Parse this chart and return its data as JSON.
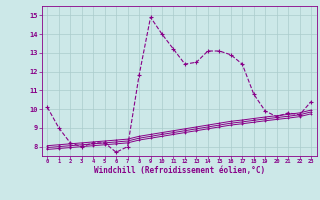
{
  "xlabel": "Windchill (Refroidissement éolien,°C)",
  "bg_color": "#cce8e8",
  "grid_color": "#aacccc",
  "line_color": "#880088",
  "x_ticks": [
    0,
    1,
    2,
    3,
    4,
    5,
    6,
    7,
    8,
    9,
    10,
    11,
    12,
    13,
    14,
    15,
    16,
    17,
    18,
    19,
    20,
    21,
    22,
    23
  ],
  "y_ticks": [
    8,
    9,
    10,
    11,
    12,
    13,
    14,
    15
  ],
  "ylim": [
    7.5,
    15.5
  ],
  "xlim": [
    -0.5,
    23.5
  ],
  "series1_x": [
    0,
    1,
    2,
    3,
    4,
    5,
    6,
    7,
    8,
    9,
    10,
    11,
    12,
    13,
    14,
    15,
    16,
    17,
    18,
    19,
    20,
    21,
    22,
    23
  ],
  "series1_y": [
    10.1,
    9.0,
    8.2,
    8.0,
    8.2,
    8.2,
    7.7,
    8.0,
    11.8,
    14.9,
    14.0,
    13.2,
    12.4,
    12.5,
    13.1,
    13.1,
    12.9,
    12.4,
    10.8,
    9.9,
    9.6,
    9.8,
    9.7,
    10.4
  ],
  "series2_y": [
    8.05,
    8.1,
    8.15,
    8.2,
    8.25,
    8.3,
    8.35,
    8.4,
    8.55,
    8.65,
    8.75,
    8.85,
    8.95,
    9.05,
    9.15,
    9.25,
    9.35,
    9.42,
    9.5,
    9.58,
    9.65,
    9.72,
    9.8,
    9.95
  ],
  "series3_y": [
    7.95,
    8.0,
    8.05,
    8.1,
    8.15,
    8.2,
    8.25,
    8.3,
    8.45,
    8.55,
    8.65,
    8.75,
    8.85,
    8.95,
    9.05,
    9.15,
    9.25,
    9.32,
    9.4,
    9.48,
    9.55,
    9.62,
    9.7,
    9.85
  ],
  "series4_y": [
    7.85,
    7.9,
    7.95,
    8.0,
    8.05,
    8.1,
    8.15,
    8.2,
    8.35,
    8.45,
    8.55,
    8.65,
    8.75,
    8.85,
    8.95,
    9.05,
    9.15,
    9.22,
    9.3,
    9.38,
    9.45,
    9.52,
    9.6,
    9.75
  ]
}
